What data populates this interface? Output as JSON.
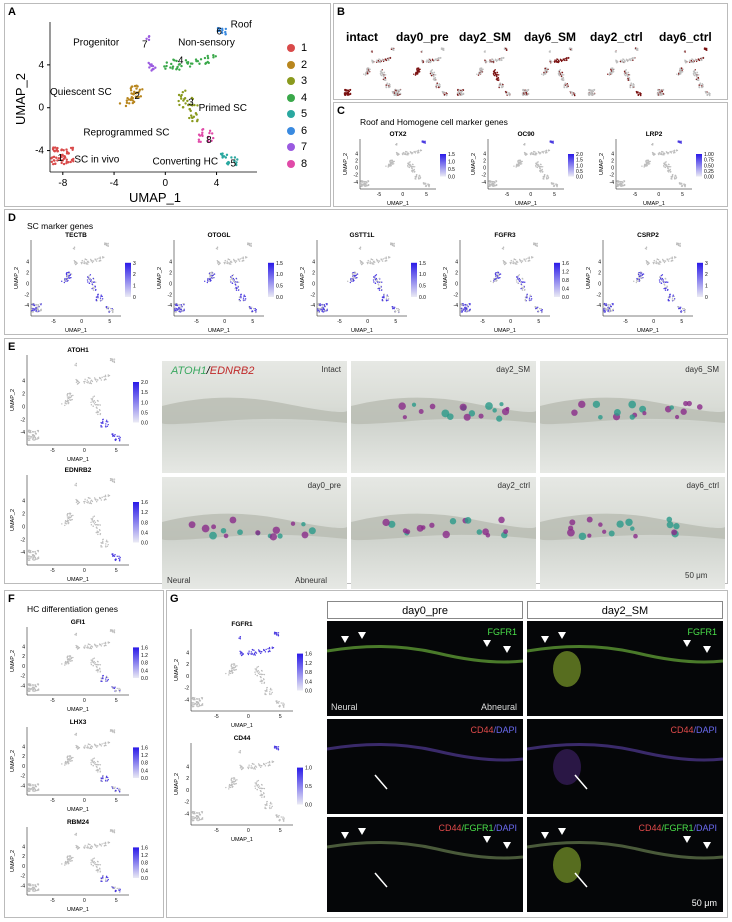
{
  "panels": {
    "A": {
      "label": "A",
      "xlabel": "UMAP_1",
      "ylabel": "UMAP_2",
      "xticks": [
        "-8",
        "-4",
        "0",
        "4"
      ],
      "yticks": [
        "4",
        "0",
        "-4"
      ],
      "cluster_names": [
        "Roof",
        "Progenitor",
        "Non-sensory",
        "Quiescent SC",
        "Primed SC",
        "Reprogrammed SC",
        "SC in vivo",
        "Converting HC"
      ],
      "legend": [
        "1",
        "2",
        "3",
        "4",
        "5",
        "6",
        "7",
        "8"
      ],
      "colors": [
        "#d94a4a",
        "#b8861e",
        "#8a9a1e",
        "#3aa84a",
        "#2aa8a0",
        "#3a8ae0",
        "#9a5ae0",
        "#e04aa8"
      ]
    },
    "B": {
      "label": "B",
      "conditions": [
        "intact",
        "day0_pre",
        "day2_SM",
        "day6_SM",
        "day2_ctrl",
        "day6_ctrl"
      ]
    },
    "C": {
      "label": "C",
      "title": "Roof and Homogene cell marker genes",
      "genes": [
        "OTX2",
        "OC90",
        "LRP2"
      ],
      "scales": [
        [
          "1.5",
          "1.0",
          "0.5",
          "0.0"
        ],
        [
          "2.0",
          "1.5",
          "1.0",
          "0.5",
          "0.0"
        ],
        [
          "1.00",
          "0.75",
          "0.50",
          "0.25",
          "0.00"
        ]
      ]
    },
    "D": {
      "label": "D",
      "title": "SC marker genes",
      "genes": [
        "TECTB",
        "OTOGL",
        "GSTT1L",
        "FGFR3",
        "CSRP2"
      ],
      "scales": [
        [
          "3",
          "2",
          "1",
          "0"
        ],
        [
          "1.5",
          "1.0",
          "0.5",
          "0.0"
        ],
        [
          "1.5",
          "1.0",
          "0.5",
          "0.0"
        ],
        [
          "1.6",
          "1.2",
          "0.8",
          "0.4",
          "0.0"
        ],
        [
          "3",
          "2",
          "1",
          "0"
        ]
      ]
    },
    "E": {
      "label": "E",
      "genes": [
        "ATOH1",
        "EDNRB2"
      ],
      "scales": [
        [
          "2.0",
          "1.5",
          "1.0",
          "0.5",
          "0.0"
        ],
        [
          "1.6",
          "1.2",
          "0.8",
          "0.4",
          "0.0"
        ]
      ],
      "probe1": "ATOH1",
      "slash": "/",
      "probe2": "EDNRB2",
      "images": [
        "Intact",
        "day2_SM",
        "day6_SM",
        "day0_pre",
        "day2_ctrl",
        "day6_ctrl"
      ],
      "neural": "Neural",
      "abneural": "Abneural",
      "scalebar": "50 μm"
    },
    "F": {
      "label": "F",
      "title": "HC differentiation genes",
      "genes": [
        "GFI1",
        "LHX3",
        "RBM24"
      ],
      "scales": [
        [
          "1.6",
          "1.2",
          "0.8",
          "0.4",
          "0.0"
        ],
        [
          "1.6",
          "1.2",
          "0.8",
          "0.4",
          "0.0"
        ],
        [
          "1.6",
          "1.2",
          "0.8",
          "0.4",
          "0.0"
        ]
      ]
    },
    "G": {
      "label": "G",
      "genes": [
        "FGFR1",
        "CD44"
      ],
      "scales": [
        [
          "1.6",
          "1.2",
          "0.8",
          "0.4",
          "0.0"
        ],
        [
          "1.0",
          "0.5",
          "0.0"
        ]
      ],
      "columns": [
        "day0_pre",
        "day2_SM"
      ],
      "row1": "FGFR1",
      "row2_a": "CD44",
      "row2_b": "/DAPI",
      "row3_a": "CD44",
      "row3_b": "/FGFR1",
      "row3_c": "/DAPI",
      "neural": "Neural",
      "abneural": "Abneural",
      "scalebar": "50 μm"
    }
  },
  "umap_axis": {
    "xlabel": "UMAP_1",
    "ylabel": "UMAP_2",
    "xticks": [
      "-5",
      "0",
      "5"
    ],
    "yticks": [
      "4",
      "2",
      "0",
      "-2",
      "-4"
    ]
  }
}
